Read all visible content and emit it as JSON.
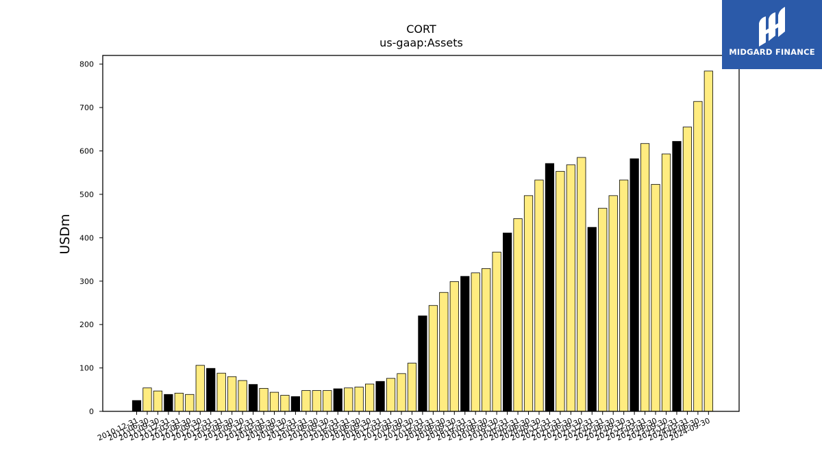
{
  "brand": {
    "name": "MIDGARD FINANCE",
    "logo_icon": "midgard-m-logo-icon",
    "background_color": "#2b5aa9"
  },
  "colors": {
    "bar_primary": "#ffec80",
    "bar_highlight": "#000000",
    "bar_edge": "#000000"
  },
  "chart_data": {
    "type": "bar",
    "title": "CORT",
    "subtitle": "us-gaap:Assets",
    "xlabel": "",
    "ylabel": "USDm",
    "ylim": [
      0,
      820
    ],
    "yticks": [
      0,
      100,
      200,
      300,
      400,
      500,
      600,
      700,
      800
    ],
    "grid": false,
    "legend": "none",
    "categories": [
      "2010-12-31",
      "2011-06-30",
      "2011-09-30",
      "2011-12-31",
      "2012-03-31",
      "2012-06-30",
      "2012-09-30",
      "2012-12-31",
      "2013-03-31",
      "2013-06-30",
      "2013-09-30",
      "2013-12-31",
      "2014-03-31",
      "2014-06-30",
      "2014-09-30",
      "2014-12-31",
      "2015-03-31",
      "2015-06-30",
      "2015-09-30",
      "2015-12-31",
      "2016-03-31",
      "2016-06-30",
      "2016-09-30",
      "2016-12-31",
      "2017-03-31",
      "2017-06-30",
      "2017-09-30",
      "2017-12-31",
      "2018-03-31",
      "2018-06-30",
      "2018-09-30",
      "2018-12-31",
      "2019-03-31",
      "2019-06-30",
      "2019-09-30",
      "2019-12-31",
      "2020-03-31",
      "2020-06-30",
      "2020-09-30",
      "2020-12-31",
      "2021-03-31",
      "2021-06-30",
      "2021-09-30",
      "2021-12-31",
      "2022-03-31",
      "2022-06-30",
      "2022-09-30",
      "2022-12-31",
      "2023-03-31",
      "2023-06-30",
      "2023-09-30",
      "2023-12-31",
      "2024-03-31",
      "2024-06-30",
      "2024-09-30"
    ],
    "values": [
      25,
      54,
      47,
      39,
      42,
      39,
      106,
      99,
      88,
      80,
      71,
      62,
      53,
      44,
      37,
      34,
      48,
      48,
      48,
      52,
      54,
      56,
      63,
      69,
      76,
      87,
      111,
      220,
      244,
      274,
      299,
      311,
      319,
      329,
      367,
      411,
      444,
      497,
      533,
      571,
      553,
      568,
      585,
      424,
      468,
      497,
      533,
      582,
      617,
      523,
      593,
      622,
      655,
      714,
      784
    ],
    "highlight": [
      true,
      false,
      false,
      true,
      false,
      false,
      false,
      true,
      false,
      false,
      false,
      true,
      false,
      false,
      false,
      true,
      false,
      false,
      false,
      true,
      false,
      false,
      false,
      true,
      false,
      false,
      false,
      true,
      false,
      false,
      false,
      true,
      false,
      false,
      false,
      true,
      false,
      false,
      false,
      true,
      false,
      false,
      false,
      true,
      false,
      false,
      false,
      true,
      false,
      false,
      false,
      true,
      false,
      false,
      false
    ]
  }
}
